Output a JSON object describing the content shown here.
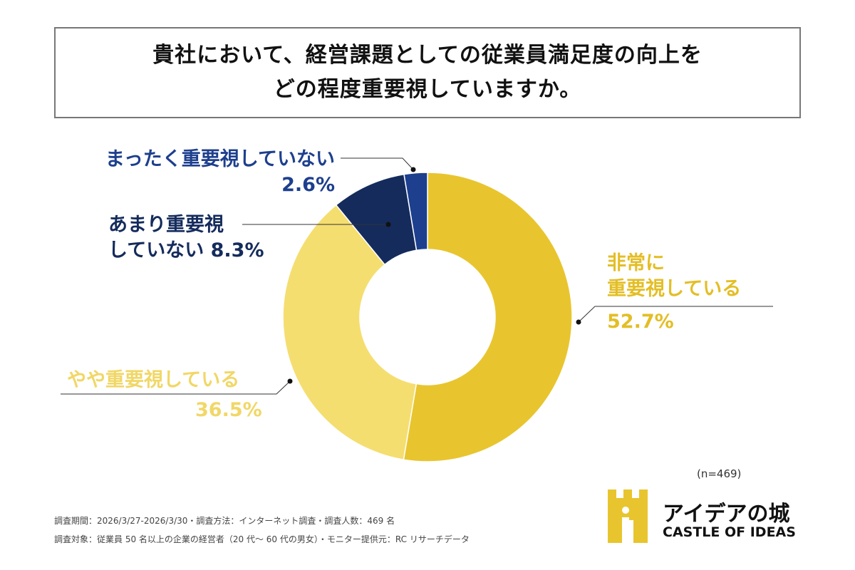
{
  "title_lines": [
    "貴社において、経営課題としての従業員満足度の向上を",
    "どの程度重要視していますか。"
  ],
  "chart_data": {
    "type": "pie",
    "donut": true,
    "title": "貴社において、経営課題としての従業員満足度の向上を どの程度重要視していますか。",
    "categories": [
      "非常に重要視している",
      "やや重要視している",
      "あまり重要視していない",
      "まったく重要視していない"
    ],
    "values": [
      52.7,
      36.5,
      8.3,
      2.6
    ],
    "value_labels": [
      "52.7%",
      "36.5%",
      "8.3%",
      "2.6%"
    ],
    "label_lines": [
      [
        "非常に",
        "重要視している"
      ],
      [
        "やや重要視している"
      ],
      [
        "あまり重要視",
        "していない"
      ],
      [
        "まったく重要視していない"
      ]
    ],
    "colors": [
      "#E8C52E",
      "#F5DE70",
      "#142B5C",
      "#1D3F8E"
    ],
    "start": "top",
    "direction": "clockwise"
  },
  "sample_size": "(n=469)",
  "footer": [
    "調査期間：2026/3/27-2026/3/30・調査方法：インターネット調査・調査人数：469 名",
    "調査対象：従業員 50 名以上の企業の経営者（20 代～ 60 代の男女）・モニター提供元：RC リサーチデータ"
  ],
  "logo": {
    "jp": "アイデアの城",
    "en": "CASTLE OF IDEAS",
    "color": "#E8C52E"
  }
}
